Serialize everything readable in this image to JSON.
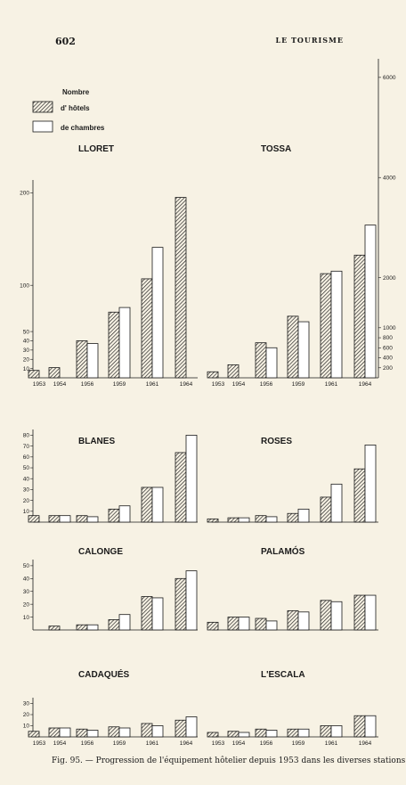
{
  "page": {
    "number": "602",
    "heading": "LE TOURISME",
    "caption": "Fig. 95. — Progression de l'équipement hôtelier depuis 1953 dans les diverses stations."
  },
  "legend": {
    "title": "Nombre",
    "hotels_label": "d' hôtels",
    "rooms_label": "de chambres"
  },
  "chart_data": [
    {
      "type": "bar",
      "title": "LLORET",
      "categories": [
        "1953",
        "1954",
        "1956",
        "1959",
        "1961",
        "1964"
      ],
      "yticks": [
        10,
        20,
        30,
        40,
        50,
        100,
        200
      ],
      "ylim": [
        0,
        210
      ],
      "series": [
        {
          "name": "d' hôtels",
          "values": [
            8,
            11,
            40,
            71,
            107,
            195
          ]
        },
        {
          "name": "de chambres",
          "values": [
            null,
            null,
            37,
            76,
            141,
            null
          ]
        }
      ]
    },
    {
      "type": "bar",
      "title": "TOSSA",
      "categories": [
        "1953",
        "1954",
        "1956",
        "1959",
        "1961",
        "1964"
      ],
      "yticks": [
        200,
        400,
        600,
        800,
        1000,
        2000,
        4000,
        6000
      ],
      "ylim": [
        0,
        6300
      ],
      "series": [
        {
          "name": "d' hôtels",
          "values": [
            120,
            260,
            700,
            1230,
            2080,
            2450
          ]
        },
        {
          "name": "de chambres",
          "values": [
            null,
            null,
            600,
            1120,
            2130,
            3050
          ]
        }
      ]
    },
    {
      "type": "bar",
      "title": "BLANES",
      "categories": [
        "1953",
        "1954",
        "1956",
        "1959",
        "1961",
        "1964"
      ],
      "yticks": [
        10,
        20,
        30,
        40,
        50,
        60,
        70,
        80
      ],
      "ylim": [
        0,
        82
      ],
      "series": [
        {
          "name": "d' hôtels",
          "values": [
            6,
            6,
            6,
            12,
            32,
            64
          ]
        },
        {
          "name": "de chambres",
          "values": [
            null,
            6,
            5,
            15,
            32,
            80
          ]
        }
      ]
    },
    {
      "type": "bar",
      "title": "ROSES",
      "categories": [
        "1953",
        "1954",
        "1956",
        "1959",
        "1961",
        "1964"
      ],
      "yticks": [],
      "ylim": [
        0,
        82
      ],
      "series": [
        {
          "name": "d' hôtels",
          "values": [
            3,
            4,
            6,
            8,
            23,
            49
          ]
        },
        {
          "name": "de chambres",
          "values": [
            null,
            4,
            5,
            12,
            35,
            71
          ]
        }
      ]
    },
    {
      "type": "bar",
      "title": "CALONGE",
      "categories": [
        "1953",
        "1954",
        "1956",
        "1959",
        "1961",
        "1964"
      ],
      "yticks": [
        10,
        20,
        30,
        40,
        50
      ],
      "ylim": [
        0,
        52
      ],
      "series": [
        {
          "name": "d' hôtels",
          "values": [
            null,
            3,
            4,
            8,
            26,
            40
          ]
        },
        {
          "name": "de chambres",
          "values": [
            null,
            null,
            4,
            12,
            25,
            46
          ]
        }
      ]
    },
    {
      "type": "bar",
      "title": "PALAMÓS",
      "categories": [
        "1953",
        "1954",
        "1956",
        "1959",
        "1961",
        "1964"
      ],
      "yticks": [],
      "ylim": [
        0,
        52
      ],
      "series": [
        {
          "name": "d' hôtels",
          "values": [
            6,
            10,
            9,
            15,
            23,
            27
          ]
        },
        {
          "name": "de chambres",
          "values": [
            null,
            10,
            7,
            14,
            22,
            27
          ]
        }
      ]
    },
    {
      "type": "bar",
      "title": "CADAQUÉS",
      "categories": [
        "1953",
        "1954",
        "1956",
        "1959",
        "1961",
        "1964"
      ],
      "yticks": [
        10,
        20,
        30
      ],
      "ylim": [
        0,
        32
      ],
      "series": [
        {
          "name": "d' hôtels",
          "values": [
            5,
            8,
            7,
            9,
            12,
            15
          ]
        },
        {
          "name": "de chambres",
          "values": [
            null,
            8,
            6,
            8,
            10,
            18
          ]
        }
      ]
    },
    {
      "type": "bar",
      "title": "L'ESCALA",
      "categories": [
        "1953",
        "1954",
        "1956",
        "1959",
        "1961",
        "1964"
      ],
      "yticks": [],
      "ylim": [
        0,
        32
      ],
      "series": [
        {
          "name": "d' hôtels",
          "values": [
            4,
            5,
            7,
            7,
            10,
            19
          ]
        },
        {
          "name": "de chambres",
          "values": [
            null,
            4,
            6,
            7,
            10,
            19
          ]
        }
      ]
    }
  ]
}
